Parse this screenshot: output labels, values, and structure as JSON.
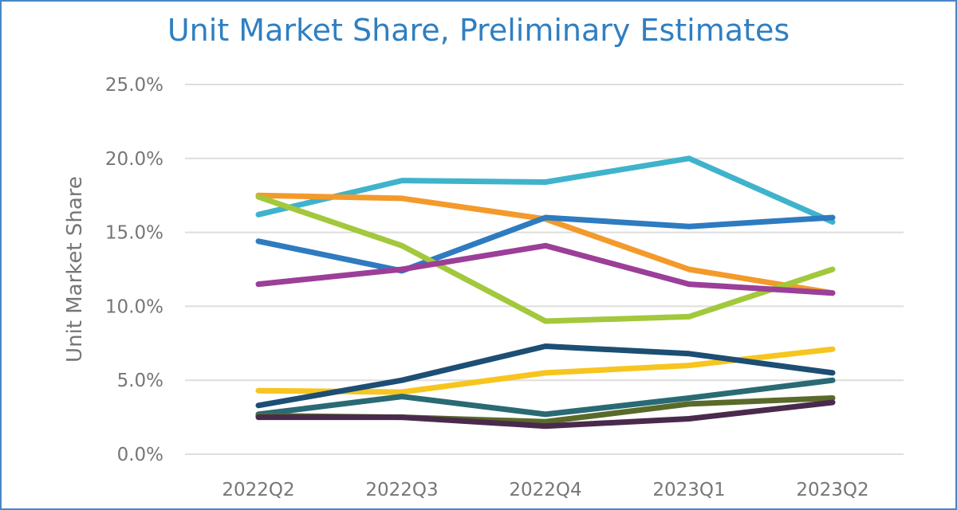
{
  "chart_data": {
    "type": "line",
    "title": "Unit Market Share, Preliminary Estimates",
    "xlabel": "",
    "ylabel": "Unit Market Share",
    "categories": [
      "2022Q2",
      "2022Q3",
      "2022Q4",
      "2023Q1",
      "2023Q2"
    ],
    "ylim": [
      0,
      25
    ],
    "yticks": [
      0,
      5,
      10,
      15,
      20,
      25
    ],
    "ytick_labels": [
      "0.0%",
      "5.0%",
      "10.0%",
      "15.0%",
      "20.0%",
      "25.0%"
    ],
    "grid": true,
    "legend": "none",
    "series": [
      {
        "color": "#3fb3cc",
        "values": [
          16.2,
          18.5,
          18.4,
          20.0,
          15.7
        ]
      },
      {
        "color": "#f39a2b",
        "values": [
          17.5,
          17.3,
          15.9,
          12.5,
          10.9
        ]
      },
      {
        "color": "#2e7bc0",
        "values": [
          14.4,
          12.4,
          16.0,
          15.4,
          16.0
        ]
      },
      {
        "color": "#a2c83c",
        "values": [
          17.4,
          14.1,
          9.0,
          9.3,
          12.5
        ]
      },
      {
        "color": "#9b3f98",
        "values": [
          11.5,
          12.5,
          14.1,
          11.5,
          10.9
        ]
      },
      {
        "color": "#f7c51f",
        "values": [
          4.3,
          4.2,
          5.5,
          6.0,
          7.1
        ]
      },
      {
        "color": "#1d4e73",
        "values": [
          3.3,
          5.0,
          7.3,
          6.8,
          5.5
        ]
      },
      {
        "color": "#2a6a74",
        "values": [
          2.7,
          3.9,
          2.7,
          3.8,
          5.0
        ]
      },
      {
        "color": "#5a6a2a",
        "values": [
          2.6,
          2.5,
          2.2,
          3.4,
          3.8
        ]
      },
      {
        "color": "#4a2a4c",
        "values": [
          2.5,
          2.5,
          1.9,
          2.4,
          3.5
        ]
      }
    ]
  }
}
